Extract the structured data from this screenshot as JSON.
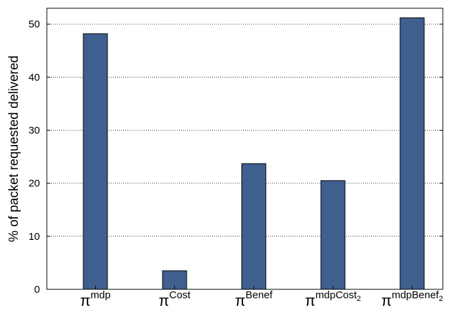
{
  "chart_data": {
    "type": "bar",
    "categories": [
      {
        "base": "π",
        "sup": "mdp",
        "sub": ""
      },
      {
        "base": "π",
        "sup": "Cost",
        "sub": ""
      },
      {
        "base": "π",
        "sup": "Benef",
        "sub": ""
      },
      {
        "base": "π",
        "sup": "mdpCost",
        "sub": "2"
      },
      {
        "base": "π",
        "sup": "mdpBenef",
        "sub": "2"
      }
    ],
    "values": [
      48.2,
      3.5,
      23.7,
      20.5,
      51.2
    ],
    "ylabel": "% of packet requested delivered",
    "xlabel": "",
    "title": "",
    "ylim": [
      0,
      53
    ],
    "yticks": [
      "0",
      "10",
      "20",
      "30",
      "40",
      "50"
    ],
    "grid": "horizontal dotted",
    "colors": {
      "bar": "#3f5f8f",
      "bar_edge": "#000000",
      "grid": "#000000"
    }
  }
}
